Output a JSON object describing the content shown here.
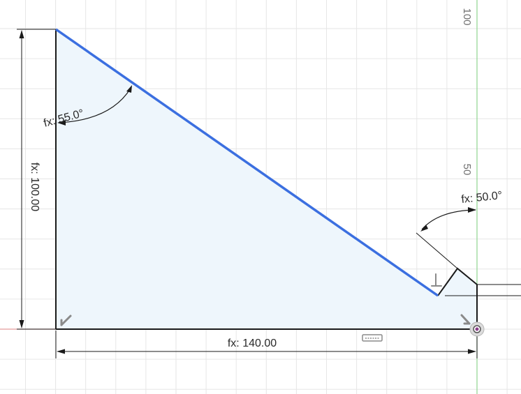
{
  "sketch": {
    "dimensions": {
      "height": {
        "label": "fx: 100.00",
        "value": 100.0
      },
      "width": {
        "label": "fx: 140.00",
        "value": 140.0
      },
      "angle_left": {
        "label": "fx: 55.0°",
        "value": 55.0
      },
      "angle_right": {
        "label": "fx: 50.0°",
        "value": 50.0
      }
    },
    "axis_labels": {
      "y100": "100",
      "y50": "50"
    },
    "colors": {
      "selected_edge": "#3b6fe0",
      "profile_fill": "#eef6fc",
      "grid_line": "#e6e6e6",
      "y_axis": "#8fd68f",
      "x_axis": "#e39a9a",
      "geometry": "#1a1a1a"
    },
    "icons": [
      "horizontal-constraint-icon",
      "perpendicular-constraint-icon",
      "coincident-constraint-icon",
      "origin-point-icon"
    ]
  }
}
